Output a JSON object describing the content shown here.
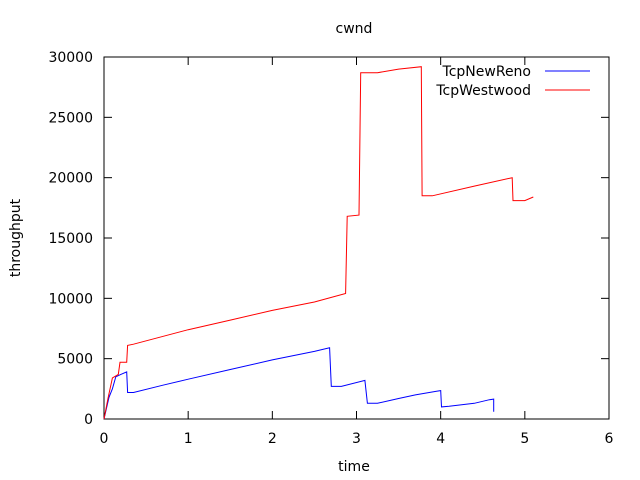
{
  "chart_data": {
    "type": "line",
    "title": "cwnd",
    "xlabel": "time",
    "ylabel": "throughput",
    "xlim": [
      0,
      6
    ],
    "ylim": [
      0,
      30000
    ],
    "xticks": [
      0,
      1,
      2,
      3,
      4,
      5,
      6
    ],
    "yticks": [
      0,
      5000,
      10000,
      15000,
      20000,
      25000,
      30000
    ],
    "grid": false,
    "legend_position": "top-right",
    "series": [
      {
        "name": "TcpNewReno",
        "color": "#0000ff",
        "points": [
          [
            0.0,
            0
          ],
          [
            0.06,
            1800
          ],
          [
            0.1,
            2500
          ],
          [
            0.14,
            3500
          ],
          [
            0.2,
            3700
          ],
          [
            0.27,
            3900
          ],
          [
            0.28,
            2200
          ],
          [
            0.35,
            2200
          ],
          [
            0.7,
            2800
          ],
          [
            1.0,
            3300
          ],
          [
            1.5,
            4100
          ],
          [
            2.0,
            4900
          ],
          [
            2.5,
            5600
          ],
          [
            2.68,
            5900
          ],
          [
            2.7,
            2700
          ],
          [
            2.82,
            2700
          ],
          [
            3.1,
            3200
          ],
          [
            3.13,
            1300
          ],
          [
            3.25,
            1300
          ],
          [
            3.5,
            1700
          ],
          [
            3.7,
            2000
          ],
          [
            3.95,
            2300
          ],
          [
            4.0,
            2350
          ],
          [
            4.01,
            1000
          ],
          [
            4.1,
            1050
          ],
          [
            4.4,
            1300
          ],
          [
            4.58,
            1600
          ],
          [
            4.63,
            1650
          ],
          [
            4.63,
            600
          ]
        ]
      },
      {
        "name": "TcpWestwood",
        "color": "#ff0000",
        "points": [
          [
            0.0,
            0
          ],
          [
            0.05,
            1800
          ],
          [
            0.1,
            3400
          ],
          [
            0.17,
            3700
          ],
          [
            0.19,
            4700
          ],
          [
            0.27,
            4700
          ],
          [
            0.28,
            6100
          ],
          [
            0.35,
            6200
          ],
          [
            1.0,
            7400
          ],
          [
            1.5,
            8200
          ],
          [
            2.0,
            9000
          ],
          [
            2.5,
            9700
          ],
          [
            2.87,
            10400
          ],
          [
            2.89,
            16800
          ],
          [
            3.03,
            16900
          ],
          [
            3.05,
            28700
          ],
          [
            3.25,
            28700
          ],
          [
            3.5,
            29000
          ],
          [
            3.77,
            29200
          ],
          [
            3.78,
            18500
          ],
          [
            3.9,
            18500
          ],
          [
            4.4,
            19300
          ],
          [
            4.85,
            20000
          ],
          [
            4.86,
            18100
          ],
          [
            5.0,
            18100
          ],
          [
            5.1,
            18400
          ]
        ]
      }
    ]
  }
}
